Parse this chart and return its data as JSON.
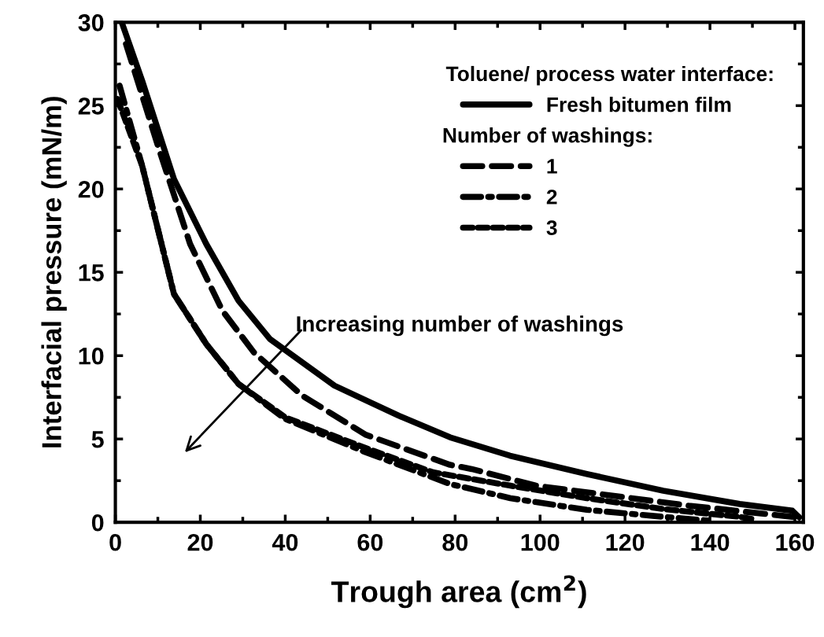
{
  "chart_data": {
    "type": "line",
    "xlabel": "Trough area (cm$^{2}$)",
    "ylabel": "Interfacial pressure (mN/m)",
    "legend_title": "Toluene/ process water interface:",
    "xlim": [
      0,
      162
    ],
    "xticks": [
      0,
      20,
      40,
      60,
      80,
      100,
      120,
      140,
      160
    ],
    "ylim": [
      0,
      30
    ],
    "yticks": [
      0,
      5,
      10,
      15,
      20,
      25,
      30
    ],
    "grid": false,
    "legend": "top right",
    "marker": "none",
    "series": [
      {
        "name": "Fresh bitumen film",
        "color": "#000000",
        "line_style": "solid",
        "x": [
          1.5,
          6.3,
          13.8,
          21.4,
          29,
          36.4,
          51.6,
          66.7,
          78.8,
          92.9,
          111,
          129,
          147,
          159.4,
          161
        ],
        "values": [
          30,
          26.5,
          20.6,
          16.7,
          13.3,
          11.0,
          8.2,
          6.4,
          5.1,
          4.0,
          2.9,
          1.9,
          1.1,
          0.7,
          0.3
        ]
      },
      {
        "name": "1",
        "color": "#000000",
        "line_style": "dashed",
        "x": [
          2.5,
          10,
          17.6,
          25.2,
          32.6,
          44,
          59,
          78.8,
          83.9,
          99,
          117,
          135,
          160.5
        ],
        "values": [
          28.7,
          22.6,
          16.7,
          12.7,
          10.2,
          7.6,
          5.25,
          3.45,
          3.2,
          2.2,
          1.6,
          1.0,
          0.3
        ]
      },
      {
        "name": "2",
        "color": "#000000",
        "line_style": "dashdot",
        "x": [
          1,
          6.3,
          13.8,
          21.4,
          29,
          40,
          59,
          78.8,
          93,
          111,
          129,
          140
        ],
        "values": [
          26.2,
          21.4,
          13.7,
          10.7,
          8.3,
          6.2,
          4.2,
          2.3,
          1.45,
          0.75,
          0.33,
          0.1
        ]
      },
      {
        "name": "3",
        "color": "#000000",
        "line_style": "dashed",
        "x": [
          0.5,
          6.3,
          13.8,
          21.4,
          29,
          40,
          59,
          74.8,
          93,
          111,
          129,
          147,
          150
        ],
        "values": [
          25.4,
          21.4,
          13.7,
          10.7,
          8.3,
          6.3,
          4.45,
          3.0,
          2.2,
          1.45,
          0.8,
          0.33,
          0.2
        ]
      }
    ],
    "annotations": [
      "Number of washings:",
      "Increasing number of washings"
    ]
  }
}
